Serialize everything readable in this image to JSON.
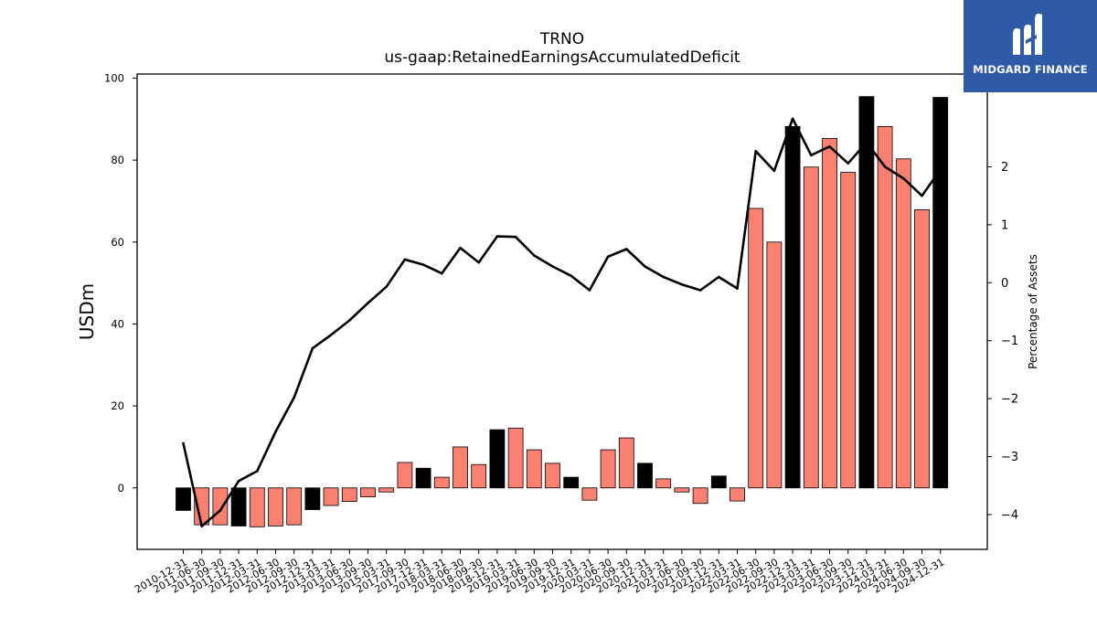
{
  "chart_data": {
    "type": "bar+line",
    "title": "TRNO",
    "subtitle": "us-gaap:RetainedEarningsAccumulatedDeficit",
    "ylabel": "USDm",
    "ylabel_right": "Percentage of Assets",
    "ylim": [
      -15,
      101
    ],
    "ylim_right": [
      -4.6,
      3.6
    ],
    "yticks": [
      0,
      20,
      40,
      60,
      80,
      100
    ],
    "yticks_right": [
      -4,
      -3,
      -2,
      -1,
      0,
      1,
      2
    ],
    "grid": false,
    "categories": [
      "2010-12-31",
      "2011-06-30",
      "2011-09-30",
      "2011-12-31",
      "2012-03-31",
      "2012-06-30",
      "2012-09-30",
      "2012-12-31",
      "2013-03-31",
      "2013-06-30",
      "2013-09-30",
      "2015-03-31",
      "2017-09-30",
      "2017-12-31",
      "2018-03-31",
      "2018-06-30",
      "2018-09-30",
      "2018-12-31",
      "2019-03-31",
      "2019-06-30",
      "2019-09-30",
      "2019-12-31",
      "2020-03-31",
      "2020-06-30",
      "2020-09-30",
      "2020-12-31",
      "2021-03-31",
      "2021-06-30",
      "2021-09-30",
      "2021-12-31",
      "2022-03-31",
      "2022-06-30",
      "2022-09-30",
      "2022-12-31",
      "2023-03-31",
      "2023-06-30",
      "2023-09-30",
      "2023-12-31",
      "2024-03-31",
      "2024-06-30",
      "2024-09-30",
      "2024-12-31"
    ],
    "series": [
      {
        "type": "bar",
        "values": [
          -5.5,
          -9,
          -9,
          -9.3,
          -9.5,
          -9.3,
          -9,
          -5.3,
          -4.3,
          -3.3,
          -2.2,
          -1,
          6.2,
          4.8,
          2.6,
          10,
          5.7,
          14.2,
          14.6,
          9.3,
          6,
          2.6,
          -3,
          9.3,
          12.2,
          6,
          2.2,
          -1,
          -3.8,
          2.9,
          -3.2,
          68.2,
          60,
          88.2,
          78.3,
          85.3,
          77,
          95.5,
          88.2,
          80.3,
          67.9,
          95.3
        ],
        "colors": [
          "#000000",
          "#fa8072",
          "#fa8072",
          "#000000",
          "#fa8072",
          "#fa8072",
          "#fa8072",
          "#000000",
          "#fa8072",
          "#fa8072",
          "#fa8072",
          "#fa8072",
          "#fa8072",
          "#000000",
          "#fa8072",
          "#fa8072",
          "#fa8072",
          "#000000",
          "#fa8072",
          "#fa8072",
          "#fa8072",
          "#000000",
          "#fa8072",
          "#fa8072",
          "#fa8072",
          "#000000",
          "#fa8072",
          "#fa8072",
          "#fa8072",
          "#000000",
          "#fa8072",
          "#fa8072",
          "#fa8072",
          "#000000",
          "#fa8072",
          "#fa8072",
          "#fa8072",
          "#000000",
          "#fa8072",
          "#fa8072",
          "#fa8072",
          "#000000"
        ]
      },
      {
        "type": "line",
        "axis": "right",
        "color": "#000000",
        "values": [
          -2.77,
          -4.2,
          -3.93,
          -3.42,
          -3.25,
          -2.57,
          -1.98,
          -1.13,
          -0.9,
          -0.65,
          -0.35,
          -0.07,
          0.4,
          0.31,
          0.16,
          0.6,
          0.35,
          0.8,
          0.79,
          0.47,
          0.28,
          0.12,
          -0.13,
          0.45,
          0.58,
          0.28,
          0.1,
          -0.03,
          -0.13,
          0.1,
          -0.1,
          2.27,
          1.93,
          2.83,
          2.2,
          2.35,
          2.06,
          2.42,
          2.0,
          1.8,
          1.5,
          1.95
        ]
      }
    ]
  },
  "logo": {
    "text": "MIDGARD FINANCE",
    "background": "#2f5aa8"
  }
}
